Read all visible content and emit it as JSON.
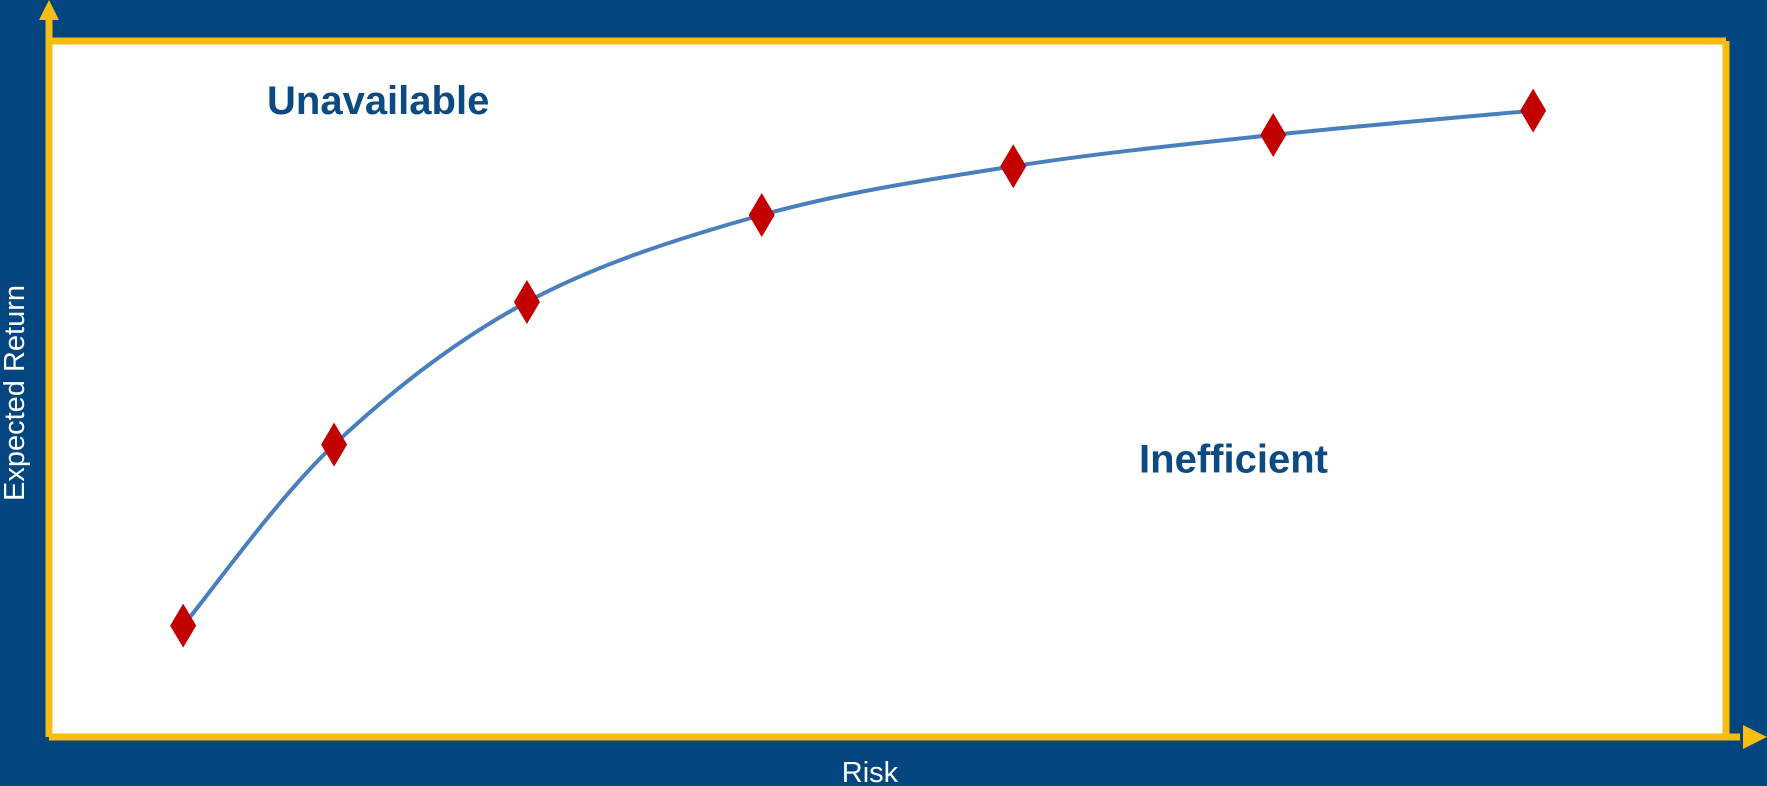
{
  "chart_data": {
    "type": "line",
    "title": "",
    "xlabel": "Risk",
    "ylabel": "Expected Return",
    "xlim": [
      0,
      100
    ],
    "ylim": [
      0,
      100
    ],
    "grid": false,
    "legend": "none",
    "axis_ticks": "none",
    "series": [
      {
        "marker": "diamond",
        "x": [
          8,
          17,
          28.5,
          42.5,
          57.5,
          73,
          88.5
        ],
        "y": [
          16,
          42,
          62.5,
          75,
          82,
          86.5,
          90
        ]
      }
    ],
    "annotations": [
      {
        "text": "Unavailable",
        "x": 13,
        "y": 91
      },
      {
        "text": "Inefficient",
        "x": 65,
        "y": 39.5
      }
    ]
  },
  "colors": {
    "background": "#02457f",
    "plot_area": "#ffffff",
    "axes": "#f8bd13",
    "line": "#4a7fbd",
    "marker": "#c20000",
    "annotation_text": "#0b4a82",
    "axis_title_text": "#ffffff"
  }
}
